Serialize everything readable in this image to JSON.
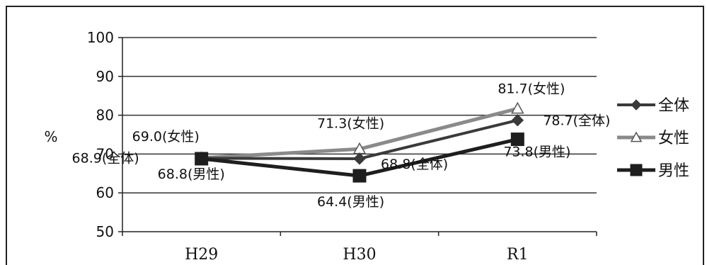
{
  "chart_data": {
    "type": "line",
    "categories": [
      "H29",
      "H30",
      "R1"
    ],
    "ylabel": "%",
    "ylim": [
      50,
      100
    ],
    "yticks": [
      50,
      60,
      70,
      80,
      90,
      100
    ],
    "grid": true,
    "legend_position": "right",
    "series": [
      {
        "name": "全体",
        "marker": "diamond",
        "color": "#3a3a3a",
        "values": [
          68.9,
          68.8,
          78.7
        ],
        "labels": [
          "68.9(全体)",
          "68.8(全体)",
          "78.7(全体)"
        ]
      },
      {
        "name": "女性",
        "marker": "triangle",
        "color": "#8a8a8a",
        "values": [
          69.0,
          71.3,
          81.7
        ],
        "labels": [
          "69.0(女性)",
          "71.3(女性)",
          "81.7(女性)"
        ]
      },
      {
        "name": "男性",
        "marker": "square",
        "color": "#1e1e1e",
        "values": [
          68.8,
          64.4,
          73.8
        ],
        "labels": [
          "68.8(男性)",
          "64.4(男性)",
          "73.8(男性)"
        ]
      }
    ]
  }
}
